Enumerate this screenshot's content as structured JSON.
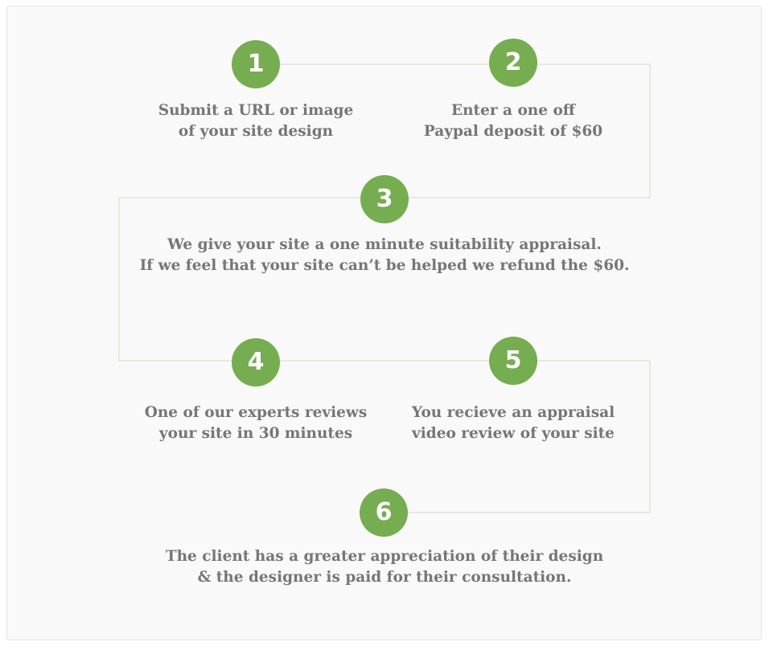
{
  "accent_color": "#76ad50",
  "steps": [
    {
      "number": "1",
      "lines": [
        "Submit a URL or image",
        "of your site design"
      ]
    },
    {
      "number": "2",
      "lines": [
        "Enter a one off",
        "Paypal deposit of $60"
      ]
    },
    {
      "number": "3",
      "lines": [
        "We give your site a one minute suitability appraisal.",
        "If we feel that your site can’t be helped we refund the $60."
      ]
    },
    {
      "number": "4",
      "lines": [
        "One of our experts reviews",
        "your site in 30 minutes"
      ]
    },
    {
      "number": "5",
      "lines": [
        "You recieve an appraisal",
        "video review of your site"
      ]
    },
    {
      "number": "6",
      "lines": [
        "The client has a greater appreciation of their design",
        "& the designer is paid for their consultation."
      ]
    }
  ]
}
